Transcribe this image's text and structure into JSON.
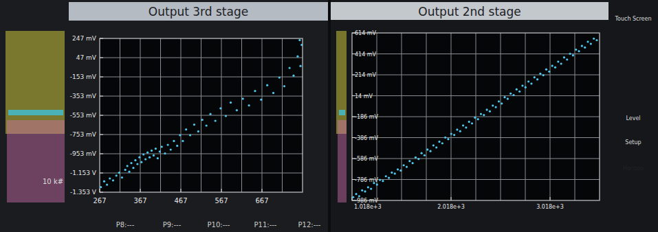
{
  "chart_data": [
    {
      "type": "scatter",
      "title": "Output 3rd stage",
      "color": "#4fc6ec",
      "marker": "dot",
      "grid": true,
      "xlim": [
        267,
        767
      ],
      "ylim": [
        -1353,
        247
      ],
      "xticks": [
        267,
        367,
        467,
        567,
        667
      ],
      "yticks": [
        {
          "value": 247,
          "label": "247 mV"
        },
        {
          "value": 47,
          "label": "47 mV"
        },
        {
          "value": -153,
          "label": "-153 mV"
        },
        {
          "value": -353,
          "label": "-353 mV"
        },
        {
          "value": -553,
          "label": "-553 mV"
        },
        {
          "value": -753,
          "label": "-753 mV"
        },
        {
          "value": -953,
          "label": "-953 mV"
        },
        {
          "value": -1153,
          "label": "-1.153 V"
        },
        {
          "value": -1353,
          "label": "-1.353 V"
        }
      ],
      "x": [
        270,
        278,
        285,
        292,
        300,
        308,
        315,
        322,
        330,
        335,
        340,
        345,
        350,
        355,
        360,
        365,
        370,
        375,
        380,
        385,
        390,
        395,
        400,
        405,
        410,
        415,
        420,
        428,
        435,
        442,
        450,
        458,
        465,
        472,
        480,
        490,
        500,
        510,
        520,
        530,
        540,
        552,
        565,
        578,
        590,
        605,
        620,
        635,
        650,
        665,
        680,
        695,
        710,
        722,
        735,
        745,
        755,
        762,
        765,
        760
      ],
      "values": [
        -1300,
        -1240,
        -1275,
        -1210,
        -1230,
        -1180,
        -1150,
        -1200,
        -1120,
        -1080,
        -1140,
        -1050,
        -1100,
        -1020,
        -1060,
        -990,
        -1040,
        -960,
        -1010,
        -940,
        -990,
        -920,
        -970,
        -900,
        -1000,
        -930,
        -880,
        -950,
        -860,
        -910,
        -820,
        -870,
        -760,
        -820,
        -700,
        -760,
        -650,
        -720,
        -600,
        -660,
        -540,
        -610,
        -480,
        -560,
        -420,
        -500,
        -380,
        -450,
        -300,
        -390,
        -240,
        -320,
        -160,
        -250,
        -60,
        -140,
        60,
        -40,
        180,
        230
      ],
      "annotations": [
        "10 k#",
        "P8:---",
        "P9:---",
        "P10:---",
        "P11:---",
        "P12:---"
      ]
    },
    {
      "type": "scatter",
      "title": "Output 2nd stage",
      "color": "#4fc6ec",
      "marker": "dot",
      "grid": true,
      "xlim": [
        1018,
        3518
      ],
      "ylim": [
        -986,
        614
      ],
      "xticks": [
        {
          "value": 1018,
          "label": "1.018e+3"
        },
        {
          "value": 2018,
          "label": "2.018e+3"
        },
        {
          "value": 3018,
          "label": "3.018e+3"
        }
      ],
      "yticks": [
        {
          "value": 614,
          "label": "614 mV"
        },
        {
          "value": 414,
          "label": "414 mV"
        },
        {
          "value": 214,
          "label": "214 mV"
        },
        {
          "value": 14,
          "label": "14 mV"
        },
        {
          "value": -186,
          "label": "-186 mV"
        },
        {
          "value": -386,
          "label": "-386 mV"
        },
        {
          "value": -586,
          "label": "-586 mV"
        },
        {
          "value": -786,
          "label": "-786 mV"
        },
        {
          "value": -986,
          "label": "-986 mV"
        }
      ],
      "x": [
        1030,
        1060,
        1090,
        1120,
        1150,
        1180,
        1210,
        1240,
        1270,
        1300,
        1330,
        1360,
        1390,
        1420,
        1450,
        1480,
        1510,
        1540,
        1570,
        1600,
        1630,
        1660,
        1690,
        1720,
        1750,
        1780,
        1810,
        1840,
        1870,
        1900,
        1930,
        1960,
        1990,
        2020,
        2050,
        2080,
        2110,
        2140,
        2170,
        2200,
        2230,
        2260,
        2290,
        2320,
        2350,
        2380,
        2410,
        2440,
        2470,
        2500,
        2530,
        2560,
        2590,
        2620,
        2650,
        2680,
        2710,
        2740,
        2770,
        2800,
        2830,
        2860,
        2890,
        2920,
        2950,
        2980,
        3010,
        3040,
        3070,
        3100,
        3130,
        3160,
        3190,
        3220,
        3250,
        3280,
        3310,
        3340,
        3370,
        3400,
        3430,
        3460,
        3490
      ],
      "values": [
        -955,
        -925,
        -945,
        -890,
        -900,
        -860,
        -875,
        -820,
        -835,
        -790,
        -800,
        -755,
        -770,
        -720,
        -730,
        -690,
        -700,
        -650,
        -665,
        -610,
        -630,
        -575,
        -590,
        -535,
        -555,
        -500,
        -515,
        -460,
        -480,
        -425,
        -440,
        -385,
        -400,
        -350,
        -360,
        -310,
        -325,
        -270,
        -290,
        -235,
        -250,
        -195,
        -210,
        -160,
        -170,
        -120,
        -135,
        -80,
        -95,
        -40,
        -60,
        0,
        -15,
        35,
        20,
        75,
        55,
        110,
        95,
        150,
        130,
        190,
        170,
        225,
        210,
        265,
        245,
        300,
        285,
        340,
        320,
        380,
        360,
        415,
        400,
        455,
        440,
        490,
        475,
        530,
        510,
        560,
        545
      ],
      "annotations": [
        "Touch Screen",
        "Level",
        "Setup",
        "Horizon"
      ]
    }
  ]
}
